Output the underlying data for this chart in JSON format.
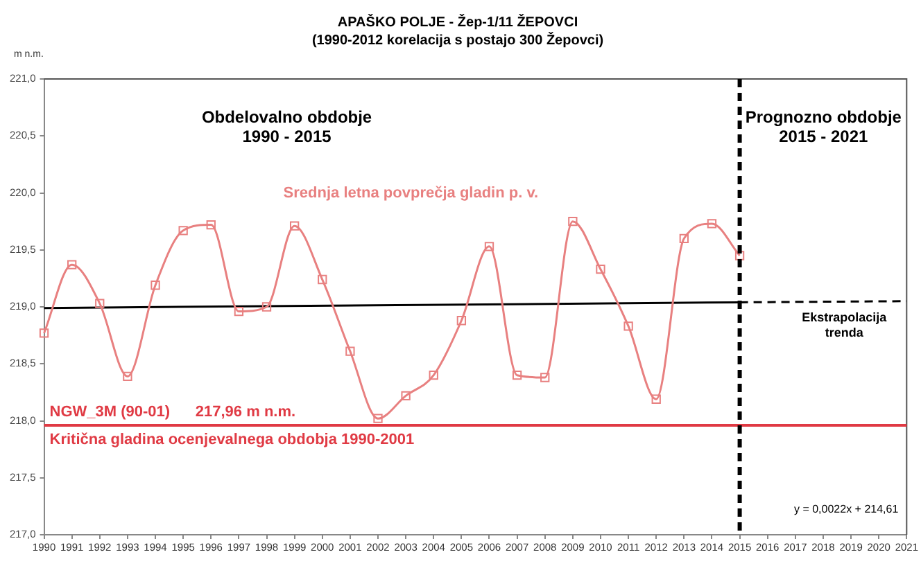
{
  "chart_data": {
    "type": "line",
    "title": "APAŠKO POLJE - Žep-1/11 ŽEPOVCI",
    "subtitle": "(1990-2012 korelacija s postajo 300 Žepovci)",
    "ylabel": "m n.m.",
    "categories": [
      "1990",
      "1991",
      "1992",
      "1993",
      "1994",
      "1995",
      "1996",
      "1997",
      "1998",
      "1999",
      "2000",
      "2001",
      "2002",
      "2003",
      "2004",
      "2005",
      "2006",
      "2007",
      "2008",
      "2009",
      "2010",
      "2011",
      "2012",
      "2013",
      "2014",
      "2015",
      "2016",
      "2017",
      "2018",
      "2019",
      "2020",
      "2021"
    ],
    "series": [
      {
        "name": "Srednja letna povprečja gladin p. v.",
        "color": "#e88080",
        "marker": "square",
        "values": [
          218.77,
          219.37,
          219.03,
          218.39,
          219.19,
          219.67,
          219.72,
          218.96,
          219.0,
          219.71,
          219.24,
          218.61,
          218.02,
          218.22,
          218.4,
          218.88,
          219.53,
          218.4,
          218.38,
          219.75,
          219.33,
          218.83,
          218.19,
          219.6,
          219.73,
          219.45,
          null,
          null,
          null,
          null,
          null,
          null
        ]
      },
      {
        "color": "#000000",
        "marker": "none",
        "line_style": "solid",
        "values": [
          218.99,
          null,
          null,
          null,
          null,
          null,
          null,
          null,
          null,
          null,
          null,
          null,
          null,
          null,
          null,
          null,
          null,
          null,
          null,
          null,
          null,
          null,
          null,
          null,
          null,
          219.04,
          null,
          null,
          null,
          null,
          null,
          null
        ]
      },
      {
        "name": "Ekstrapolacija trenda",
        "color": "#000000",
        "marker": "none",
        "line_style": "dashed",
        "values": [
          null,
          null,
          null,
          null,
          null,
          null,
          null,
          null,
          null,
          null,
          null,
          null,
          null,
          null,
          null,
          null,
          null,
          null,
          null,
          null,
          null,
          null,
          null,
          null,
          null,
          219.04,
          null,
          null,
          null,
          null,
          null,
          219.05
        ]
      }
    ],
    "ylim": [
      217.0,
      221.0
    ],
    "yticks": [
      {
        "value": 217.0,
        "label": "217,0"
      },
      {
        "value": 217.5,
        "label": "217,5"
      },
      {
        "value": 218.0,
        "label": "218,0"
      },
      {
        "value": 218.5,
        "label": "218,5"
      },
      {
        "value": 219.0,
        "label": "219,0"
      },
      {
        "value": 219.5,
        "label": "219,5"
      },
      {
        "value": 220.0,
        "label": "220,0"
      },
      {
        "value": 220.5,
        "label": "220,5"
      },
      {
        "value": 221.0,
        "label": "221,0"
      }
    ],
    "ref_lines": [
      {
        "axis": "y",
        "value": 217.96,
        "label": "NGW_3M (90-01)      217,96 m n.m.",
        "color": "#e03a44",
        "line_style": "solid"
      },
      {
        "axis": "x",
        "value": "2015",
        "color": "#000000",
        "line_style": "dashed"
      }
    ],
    "annotations": [
      "Obdelovalno obdobje\n1990 - 2015",
      "Prognozno obdobje\n2015 - 2021",
      "y = 0,0022x + 214,61",
      {
        "text": "Kritična gladina ocenjevalnega obdobja 1990-2001",
        "y": 217.96
      }
    ],
    "grid": false,
    "legend": false
  }
}
